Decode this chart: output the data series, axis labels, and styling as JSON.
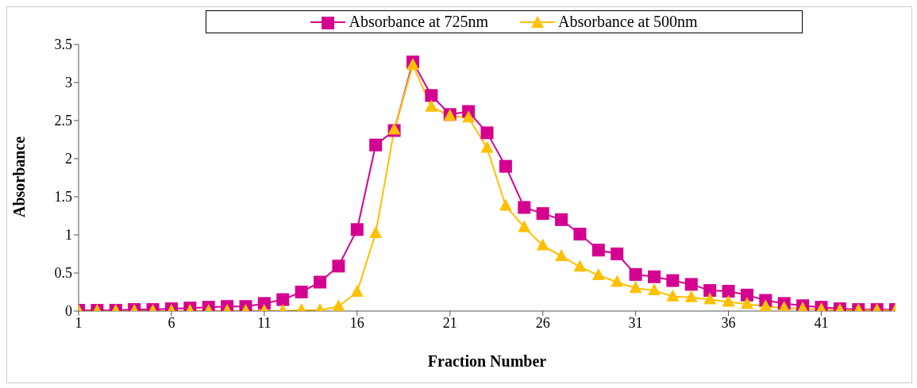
{
  "chart_data": {
    "type": "line",
    "xlabel": "Fraction Number",
    "ylabel": "Absorbance",
    "x": [
      1,
      2,
      3,
      4,
      5,
      6,
      7,
      8,
      9,
      10,
      11,
      12,
      13,
      14,
      15,
      16,
      17,
      18,
      19,
      20,
      21,
      22,
      23,
      24,
      25,
      26,
      27,
      28,
      29,
      30,
      31,
      32,
      33,
      34,
      35,
      36,
      37,
      38,
      39,
      40,
      41,
      42,
      43,
      44,
      45
    ],
    "series": [
      {
        "name": "Absorbance at 725nm",
        "color": "#d4008f",
        "marker": "square",
        "values": [
          0.01,
          0.01,
          0.01,
          0.02,
          0.02,
          0.03,
          0.04,
          0.05,
          0.06,
          0.06,
          0.1,
          0.15,
          0.25,
          0.38,
          0.59,
          1.07,
          2.18,
          2.37,
          3.27,
          2.83,
          2.58,
          2.62,
          2.34,
          1.9,
          1.36,
          1.28,
          1.2,
          1.01,
          0.8,
          0.75,
          0.48,
          0.45,
          0.4,
          0.35,
          0.27,
          0.26,
          0.21,
          0.14,
          0.1,
          0.07,
          0.05,
          0.03,
          0.02,
          0.02,
          0.02
        ]
      },
      {
        "name": "Absorbance at 500nm",
        "color": "#ffc000",
        "marker": "triangle",
        "values": [
          0,
          0,
          0,
          0,
          0,
          0,
          0,
          0,
          0,
          0,
          0,
          0,
          0.01,
          0.01,
          0.06,
          0.25,
          1.02,
          2.38,
          3.23,
          2.68,
          2.56,
          2.54,
          2.14,
          1.38,
          1.1,
          0.86,
          0.72,
          0.58,
          0.47,
          0.38,
          0.3,
          0.27,
          0.19,
          0.18,
          0.15,
          0.12,
          0.09,
          0.06,
          0.04,
          0.03,
          0.02,
          0.01,
          0.01,
          0.01,
          0.01
        ]
      }
    ],
    "xlim": [
      1,
      45
    ],
    "xticks": [
      1,
      6,
      11,
      16,
      21,
      26,
      31,
      36,
      41
    ],
    "ylim": [
      0,
      3.5
    ],
    "yticks": [
      0,
      0.5,
      1,
      1.5,
      2,
      2.5,
      3,
      3.5
    ],
    "grid": false,
    "legend": "top"
  }
}
